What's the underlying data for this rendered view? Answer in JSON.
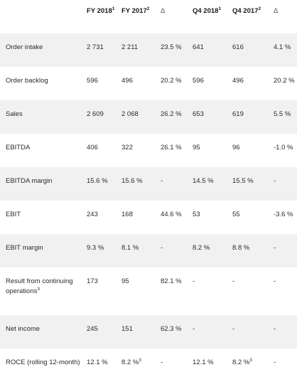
{
  "header": {
    "fy2018": "FY 2018",
    "fy2018_note": "1",
    "fy2017": "FY 2017",
    "fy2017_note": "2",
    "delta1": "Δ",
    "q42018": "Q4 2018",
    "q42018_note": "1",
    "q42017": "Q4 2017",
    "q42017_note": "2",
    "delta2": "Δ"
  },
  "rows": [
    {
      "label": "Order intake",
      "label_note": "",
      "fy2018": "2 731",
      "fy2017": "2 211",
      "fy2017_note": "",
      "delta1": "23.5 %",
      "q42018": "641",
      "q42017": "616",
      "q42017_note": "",
      "delta2": "4.1 %"
    },
    {
      "label": "Order backlog",
      "label_note": "",
      "fy2018": "596",
      "fy2017": "496",
      "fy2017_note": "",
      "delta1": "20.2 %",
      "q42018": "596",
      "q42017": "496",
      "q42017_note": "",
      "delta2": "20.2 %"
    },
    {
      "label": "Sales",
      "label_note": "",
      "fy2018": "2 609",
      "fy2017": "2 068",
      "fy2017_note": "",
      "delta1": "26.2 %",
      "q42018": "653",
      "q42017": "619",
      "q42017_note": "",
      "delta2": "5.5 %"
    },
    {
      "label": "EBITDA",
      "label_note": "",
      "fy2018": "406",
      "fy2017": "322",
      "fy2017_note": "",
      "delta1": "26.1 %",
      "q42018": "95",
      "q42017": "96",
      "q42017_note": "",
      "delta2": "-1.0 %"
    },
    {
      "label": "EBITDA margin",
      "label_note": "",
      "fy2018": "15.6 %",
      "fy2017": "15.6 %",
      "fy2017_note": "",
      "delta1": "-",
      "q42018": "14.5 %",
      "q42017": "15.5 %",
      "q42017_note": "",
      "delta2": "-"
    },
    {
      "label": "EBIT",
      "label_note": "",
      "fy2018": "243",
      "fy2017": "168",
      "fy2017_note": "",
      "delta1": "44.6 %",
      "q42018": "53",
      "q42017": "55",
      "q42017_note": "",
      "delta2": "-3.6 %"
    },
    {
      "label": "EBIT margin",
      "label_note": "",
      "fy2018": "9.3 %",
      "fy2017": "8.1 %",
      "fy2017_note": "",
      "delta1": "-",
      "q42018": "8.2 %",
      "q42017": "8.8 %",
      "q42017_note": "",
      "delta2": "-"
    },
    {
      "label": "Result from continuing operations",
      "label_note": "3",
      "fy2018": "173",
      "fy2017": "95",
      "fy2017_note": "",
      "delta1": "82.1 %",
      "q42018": "-",
      "q42017": "-",
      "q42017_note": "",
      "delta2": "-"
    },
    {
      "label": "Net income",
      "label_note": "",
      "fy2018": "245",
      "fy2017": "151",
      "fy2017_note": "",
      "delta1": "62.3 %",
      "q42018": "-",
      "q42017": "-",
      "q42017_note": "",
      "delta2": "-"
    },
    {
      "label": "ROCE (rolling 12-month)",
      "label_note": "",
      "fy2018": "12.1 %",
      "fy2017": "8.2 %",
      "fy2017_note": "3",
      "delta1": "-",
      "q42018": "12.1 %",
      "q42017": "8.2 %",
      "q42017_note": "3",
      "delta2": "-"
    }
  ]
}
